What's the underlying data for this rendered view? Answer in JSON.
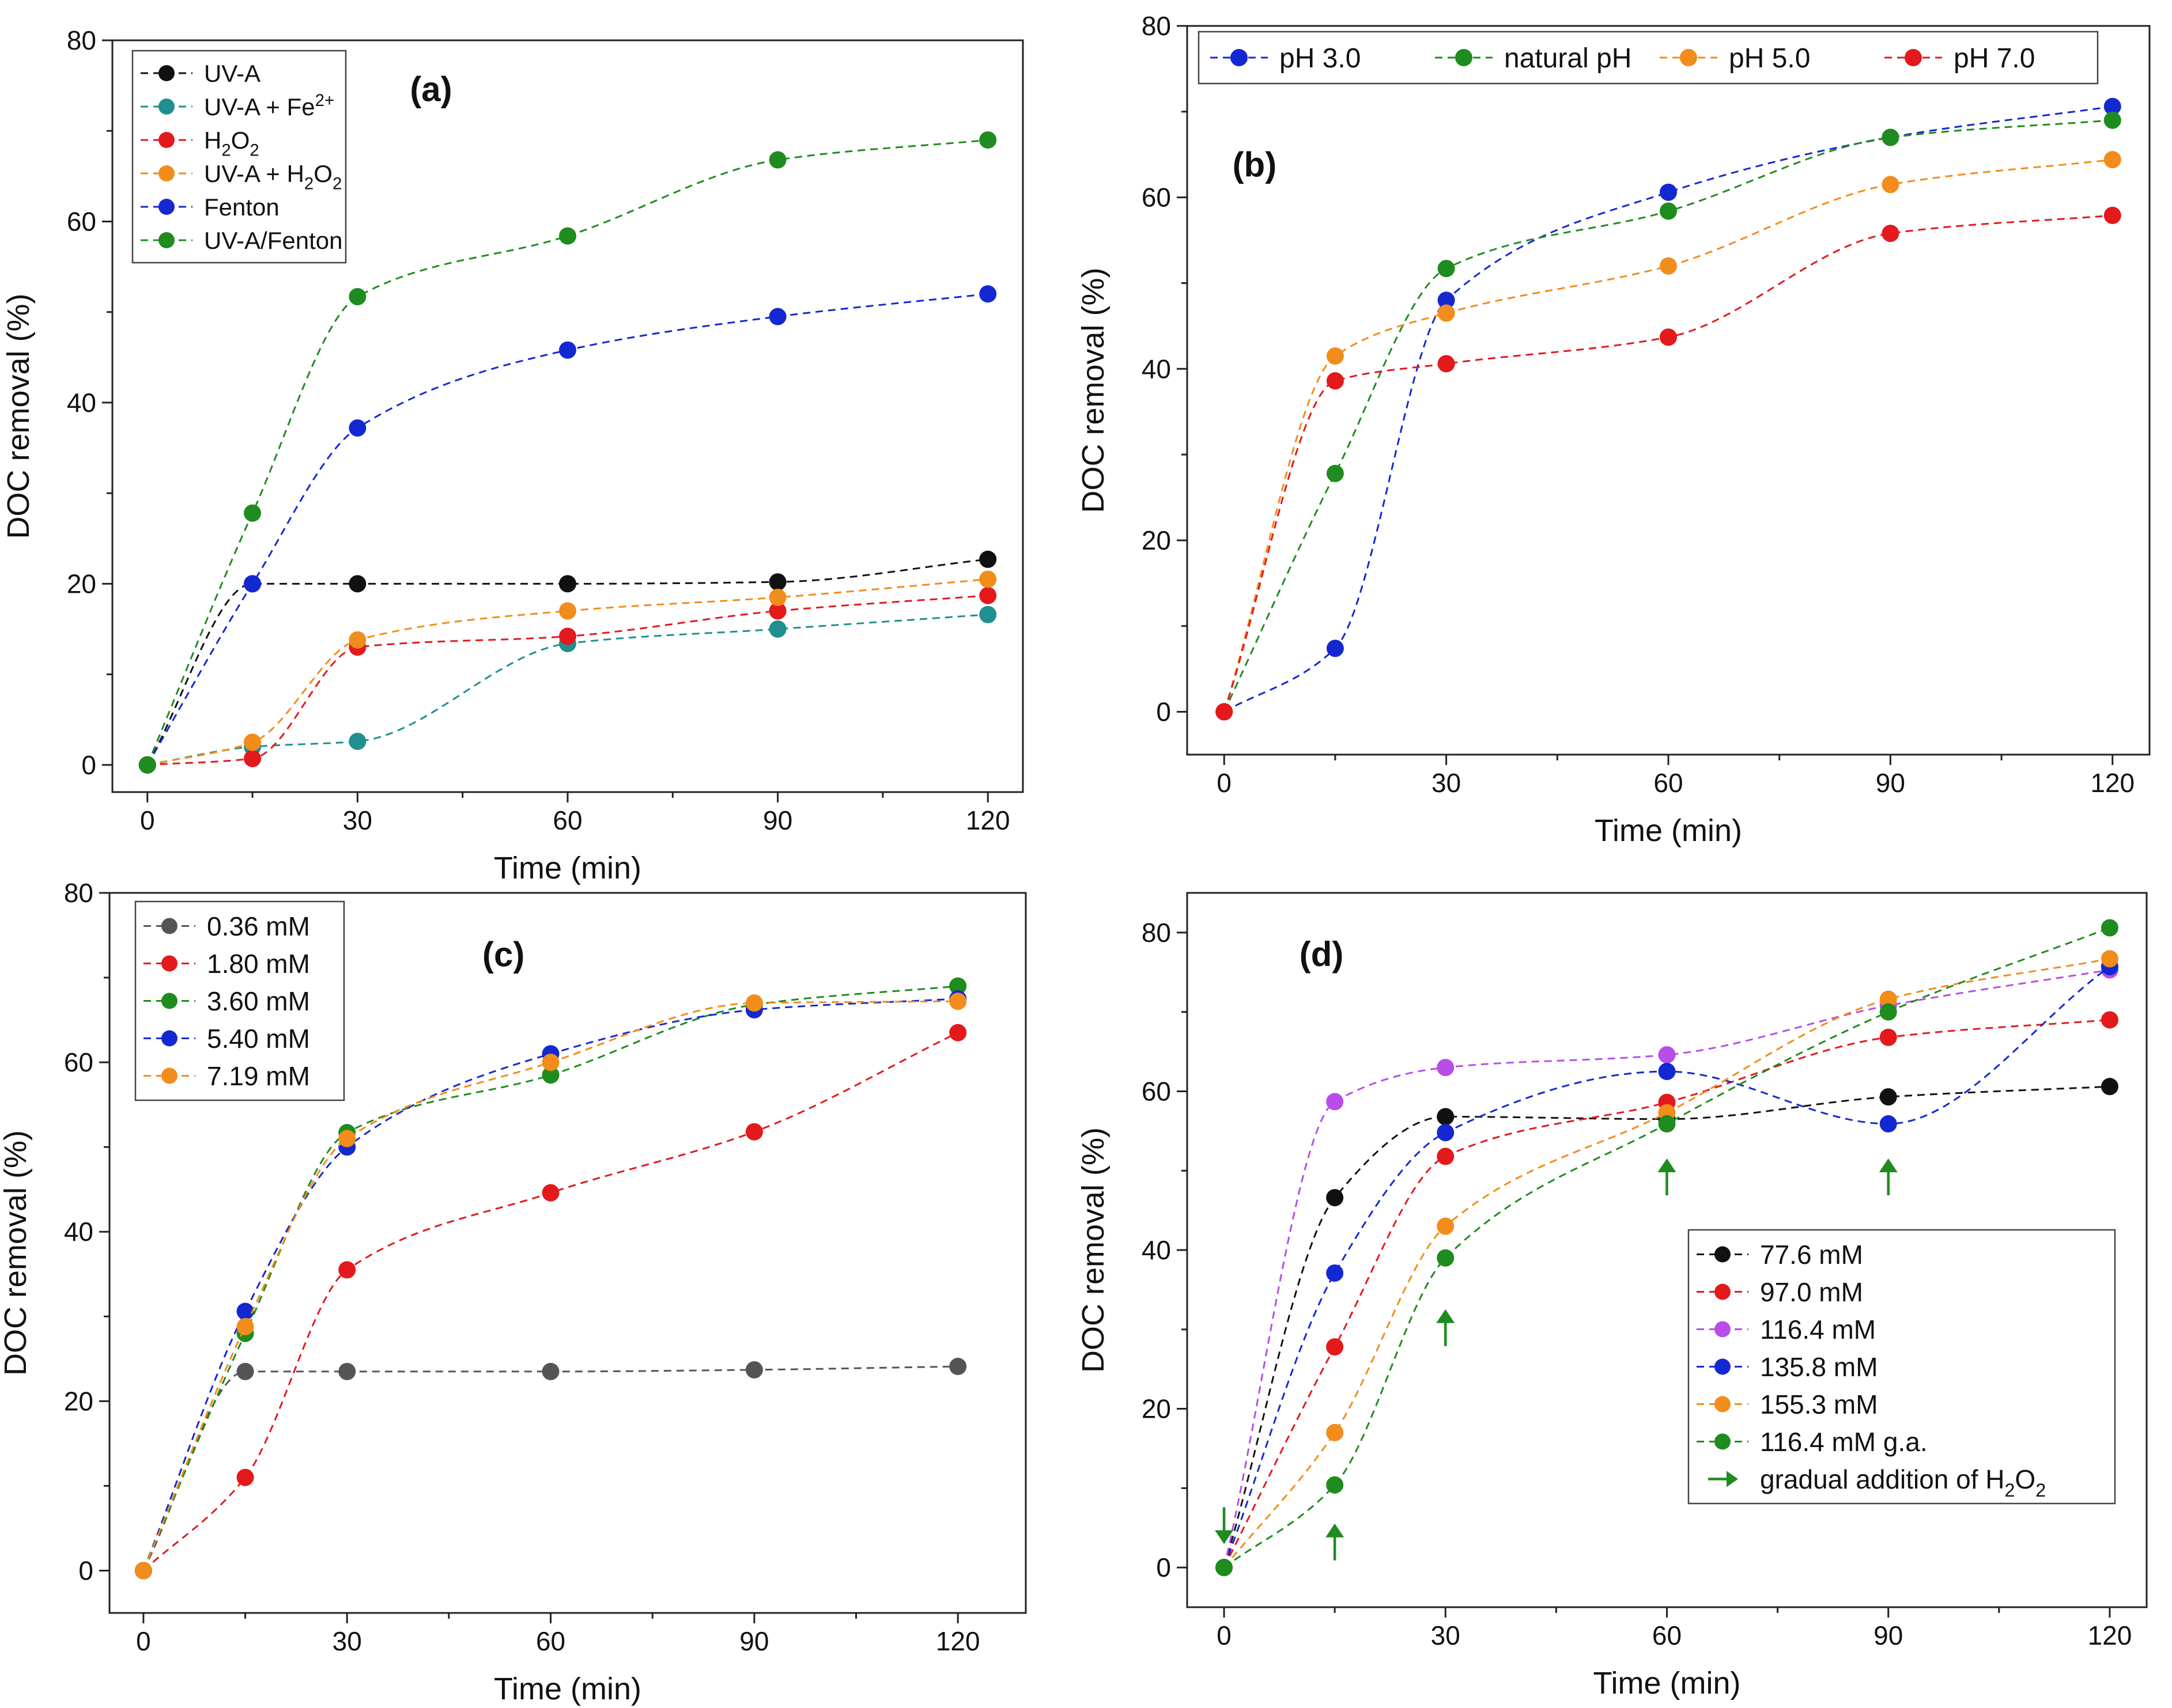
{
  "colors": {
    "black": "#111111",
    "teal": "#1f8f8f",
    "red": "#e3191c",
    "orange": "#f28c1a",
    "blue": "#1428d2",
    "green": "#1e8c1e",
    "gray": "#555555",
    "violet": "#b84de8"
  },
  "chart_data": [
    {
      "id": "a",
      "panel_label": "(a)",
      "type": "line",
      "xlabel": "Time (min)",
      "ylabel": "DOC removal (%)",
      "xlim": [
        -5,
        125
      ],
      "ylim": [
        -3,
        80
      ],
      "xticks": [
        0,
        30,
        60,
        90,
        120
      ],
      "yticks": [
        0,
        20,
        40,
        60,
        80
      ],
      "legend_position": "top-left",
      "series": [
        {
          "name": "UV-A",
          "name_base": "UV-A",
          "name_sup": "",
          "name_sub": "",
          "name_tail": "",
          "color_key": "black",
          "x": [
            0,
            15,
            30,
            60,
            90,
            120
          ],
          "values": [
            0,
            20,
            20,
            20,
            20.2,
            22.7
          ]
        },
        {
          "name": "UV-A + Fe2+",
          "name_base": "UV-A + Fe",
          "name_sup": "2+",
          "name_sub": "",
          "name_tail": "",
          "color_key": "teal",
          "x": [
            0,
            15,
            30,
            60,
            90,
            120
          ],
          "values": [
            0,
            2,
            2.6,
            13.4,
            15,
            16.6
          ]
        },
        {
          "name": "H2O2",
          "name_base": "H",
          "name_sup": "",
          "name_sub": "2",
          "name_tail": "O2",
          "color_key": "red",
          "x": [
            0,
            15,
            30,
            60,
            90,
            120
          ],
          "values": [
            0,
            0.7,
            13,
            14.2,
            17,
            18.7
          ]
        },
        {
          "name": "UV-A + H2O2",
          "name_base": "UV-A + H",
          "name_sup": "",
          "name_sub": "2",
          "name_tail": "O2",
          "color_key": "orange",
          "x": [
            0,
            15,
            30,
            60,
            90,
            120
          ],
          "values": [
            0,
            2.5,
            13.8,
            17,
            18.5,
            20.5
          ]
        },
        {
          "name": "Fenton",
          "name_base": "Fenton",
          "name_sup": "",
          "name_sub": "",
          "name_tail": "",
          "color_key": "blue",
          "x": [
            0,
            15,
            30,
            60,
            90,
            120
          ],
          "values": [
            0,
            20,
            37.2,
            45.8,
            49.5,
            52
          ]
        },
        {
          "name": "UV-A/Fenton",
          "name_base": "UV-A/Fenton",
          "name_sup": "",
          "name_sub": "",
          "name_tail": "",
          "color_key": "green",
          "x": [
            0,
            15,
            30,
            60,
            90,
            120
          ],
          "values": [
            0,
            27.8,
            51.7,
            58.4,
            66.8,
            69
          ]
        }
      ]
    },
    {
      "id": "b",
      "panel_label": "(b)",
      "type": "line",
      "xlabel": "Time (min)",
      "ylabel": "DOC removal (%)",
      "xlim": [
        -5,
        125
      ],
      "ylim": [
        -5,
        80
      ],
      "xticks": [
        0,
        30,
        60,
        90,
        120
      ],
      "yticks": [
        0,
        20,
        40,
        60,
        80
      ],
      "legend_position": "top",
      "series": [
        {
          "name": "pH 3.0",
          "color_key": "blue",
          "x": [
            0,
            15,
            30,
            60,
            90,
            120
          ],
          "values": [
            0,
            7.4,
            48,
            60.6,
            67,
            70.6
          ]
        },
        {
          "name": "natural pH",
          "color_key": "green",
          "x": [
            0,
            15,
            30,
            60,
            90,
            120
          ],
          "values": [
            0,
            27.8,
            51.7,
            58.4,
            67,
            69
          ]
        },
        {
          "name": "pH 5.0",
          "color_key": "orange",
          "x": [
            0,
            15,
            30,
            60,
            90,
            120
          ],
          "values": [
            0,
            41.5,
            46.5,
            52,
            61.5,
            64.4
          ]
        },
        {
          "name": "pH 7.0",
          "color_key": "red",
          "x": [
            0,
            15,
            30,
            60,
            90,
            120
          ],
          "values": [
            0,
            38.6,
            40.6,
            43.7,
            55.8,
            57.9
          ]
        }
      ]
    },
    {
      "id": "c",
      "panel_label": "(c)",
      "type": "line",
      "xlabel": "Time (min)",
      "ylabel": "DOC removal (%)",
      "xlim": [
        -5,
        130
      ],
      "ylim": [
        -5,
        80
      ],
      "xticks": [
        0,
        30,
        60,
        90,
        120
      ],
      "yticks": [
        0,
        20,
        40,
        60,
        80
      ],
      "legend_position": "top-left",
      "series": [
        {
          "name": "0.36 mM",
          "color_key": "gray",
          "x": [
            0,
            15,
            30,
            60,
            90,
            120
          ],
          "values": [
            0,
            23.5,
            23.5,
            23.5,
            23.7,
            24.1
          ]
        },
        {
          "name": "1.80 mM",
          "color_key": "red",
          "x": [
            0,
            15,
            30,
            60,
            90,
            120
          ],
          "values": [
            0,
            11,
            35.5,
            44.6,
            51.8,
            63.5
          ]
        },
        {
          "name": "3.60 mM",
          "color_key": "green",
          "x": [
            0,
            15,
            30,
            60,
            90,
            120
          ],
          "values": [
            0,
            28,
            51.7,
            58.5,
            66.8,
            69
          ]
        },
        {
          "name": "5.40 mM",
          "color_key": "blue",
          "x": [
            0,
            15,
            30,
            60,
            90,
            120
          ],
          "values": [
            0,
            30.6,
            50,
            61,
            66.2,
            67.5
          ]
        },
        {
          "name": "7.19 mM",
          "color_key": "orange",
          "x": [
            0,
            15,
            30,
            60,
            90,
            120
          ],
          "values": [
            0,
            28.8,
            51,
            60,
            67,
            67.2
          ]
        }
      ]
    },
    {
      "id": "d",
      "panel_label": "(d)",
      "type": "line",
      "xlabel": "Time (min)",
      "ylabel": "DOC removal (%)",
      "xlim": [
        -5,
        125
      ],
      "ylim": [
        -5,
        85
      ],
      "xticks": [
        0,
        30,
        60,
        90,
        120
      ],
      "yticks": [
        0,
        20,
        40,
        60,
        80
      ],
      "legend_position": "bottom-right",
      "series": [
        {
          "name": "77.6 mM",
          "color_key": "black",
          "x": [
            0,
            15,
            30,
            60,
            90,
            120
          ],
          "values": [
            0,
            46.6,
            56.8,
            56.5,
            59.3,
            60.6
          ]
        },
        {
          "name": "97.0 mM",
          "color_key": "red",
          "x": [
            0,
            15,
            30,
            60,
            90,
            120
          ],
          "values": [
            0,
            27.8,
            51.8,
            58.6,
            66.8,
            69
          ]
        },
        {
          "name": "116.4 mM",
          "color_key": "violet",
          "x": [
            0,
            15,
            30,
            60,
            90,
            120
          ],
          "values": [
            0,
            58.7,
            63,
            64.6,
            70.8,
            75.3
          ]
        },
        {
          "name": "135.8 mM",
          "color_key": "blue",
          "x": [
            0,
            15,
            30,
            60,
            90,
            120
          ],
          "values": [
            0,
            37.1,
            54.8,
            62.5,
            55.9,
            75.7
          ]
        },
        {
          "name": "155.3 mM",
          "color_key": "orange",
          "x": [
            0,
            15,
            30,
            60,
            90,
            120
          ],
          "values": [
            0,
            17,
            43,
            57.3,
            71.6,
            76.7
          ]
        },
        {
          "name": "116.4 mM g.a.",
          "color_key": "green",
          "x": [
            0,
            15,
            30,
            60,
            90,
            120
          ],
          "values": [
            0,
            10.4,
            39,
            55.9,
            70,
            80.6
          ]
        }
      ],
      "annotation_legend": "gradual addition of H2O2",
      "annotation_legend_base": "gradual addition of H",
      "annotation_legend_sub": "2",
      "annotation_legend_tail": "O2",
      "arrow_markers": {
        "description": "gradual addition of H2O2",
        "points": [
          {
            "x": 0,
            "y": 5.5,
            "direction": "down"
          },
          {
            "x": 15,
            "y": 3,
            "direction": "up"
          },
          {
            "x": 30,
            "y": 30,
            "direction": "up"
          },
          {
            "x": 60,
            "y": 49,
            "direction": "up"
          },
          {
            "x": 90,
            "y": 49,
            "direction": "up"
          }
        ]
      }
    }
  ]
}
